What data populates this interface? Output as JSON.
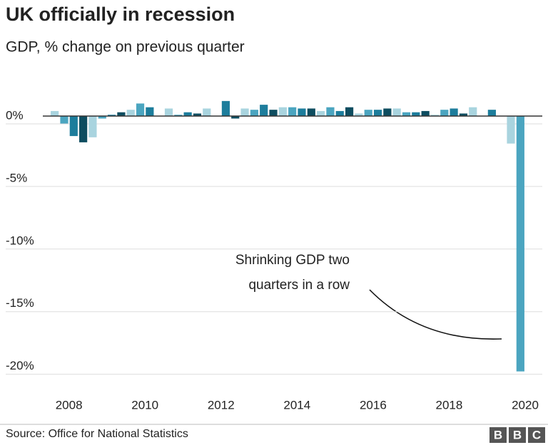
{
  "chart_data": {
    "type": "bar",
    "title": "UK officially in recession",
    "subtitle": "GDP, % change on previous quarter",
    "categories": [
      null,
      "2008",
      null,
      null,
      null,
      null,
      null,
      null,
      null,
      "2010",
      null,
      null,
      null,
      null,
      null,
      null,
      null,
      "2012",
      null,
      null,
      null,
      null,
      null,
      null,
      null,
      "2014",
      null,
      null,
      null,
      null,
      null,
      null,
      null,
      "2016",
      null,
      null,
      null,
      null,
      null,
      null,
      null,
      "2018",
      null,
      null,
      null,
      null,
      null,
      null,
      null,
      "2020"
    ],
    "values": [
      0.4,
      -0.6,
      -1.6,
      -2.1,
      -1.7,
      -0.2,
      0.1,
      0.3,
      0.5,
      1.0,
      0.7,
      0.0,
      0.6,
      0.1,
      0.3,
      0.2,
      0.6,
      0.0,
      1.2,
      -0.2,
      0.6,
      0.5,
      0.9,
      0.5,
      0.7,
      0.7,
      0.6,
      0.6,
      0.4,
      0.7,
      0.4,
      0.7,
      0.2,
      0.5,
      0.5,
      0.6,
      0.6,
      0.3,
      0.3,
      0.4,
      0.1,
      0.5,
      0.6,
      0.2,
      0.7,
      0.0,
      0.5,
      0.0,
      -2.2,
      -20.4
    ],
    "colors": [
      "#a9d4df",
      "#4ba5c0",
      "#1d7d9c",
      "#0e4d60"
    ],
    "ylim": [
      -21.5,
      2.5
    ],
    "yticks": [
      {
        "value": 0,
        "label": "0%"
      },
      {
        "value": -5,
        "label": "-5%"
      },
      {
        "value": -10,
        "label": "-10%"
      },
      {
        "value": -15,
        "label": "-15%"
      },
      {
        "value": -20,
        "label": "-20%"
      }
    ],
    "grid": true,
    "annotation": [
      "Shrinking GDP two",
      "quarters in a row"
    ],
    "source": "Source: Office for National Statistics",
    "logo": [
      "B",
      "B",
      "C"
    ]
  }
}
